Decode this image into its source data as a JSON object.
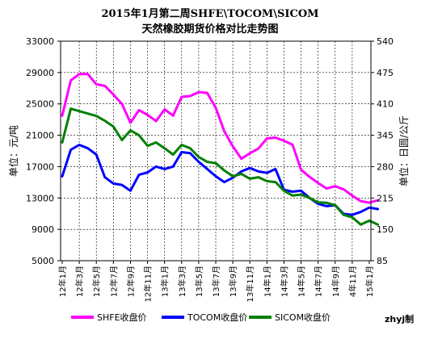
{
  "chart_data": {
    "type": "line",
    "title_line1": "2015年1月第二周SHFE\\TOCOM\\SICOM",
    "title_line2": "天然橡胶期货价格对比走势图",
    "ylabel_left": "单位：元/吨",
    "ylabel_right": "单位：日圆/公斤",
    "credit": "zhyj制",
    "yleft": {
      "min": 5000,
      "max": 33000,
      "ticks": [
        "5000",
        "9000",
        "13000",
        "17000",
        "21000",
        "25000",
        "29000",
        "33000"
      ]
    },
    "yright": {
      "min": 85,
      "max": 540,
      "ticks": [
        "85",
        "150",
        "215",
        "280",
        "345",
        "410",
        "475",
        "540"
      ]
    },
    "x_ticks": [
      "12年1月",
      "12年3月",
      "12年5月",
      "12年7月",
      "12年9月",
      "12年11月",
      "13年1月",
      "13年3月",
      "13年5月",
      "13年7月",
      "13年9月",
      "13年11月",
      "14年1月",
      "14年3月",
      "14年5月",
      "14年7月",
      "14年9月",
      "4年11月",
      "15年1月"
    ],
    "grid": true,
    "series": [
      {
        "name": "SHFE收盘价",
        "axis": "left",
        "color": "#ff00ff",
        "x": [
          0,
          0.5,
          1,
          1.5,
          2,
          2.5,
          3,
          3.5,
          4,
          4.5,
          5,
          5.5,
          6,
          6.5,
          7,
          7.5,
          8,
          8.5,
          9,
          9.5,
          10,
          10.5,
          11,
          11.5,
          12,
          12.5,
          13,
          13.5,
          14,
          14.5,
          15,
          15.5,
          16,
          16.5,
          17,
          17.5,
          18,
          18.5
        ],
        "values": [
          23500,
          28000,
          28800,
          28800,
          27500,
          27300,
          26200,
          25000,
          22600,
          24200,
          23600,
          22800,
          24300,
          23500,
          25900,
          26000,
          26500,
          26400,
          24500,
          21500,
          19600,
          18000,
          18700,
          19300,
          20600,
          20700,
          20300,
          19800,
          16600,
          15700,
          14900,
          14200,
          14500,
          14100,
          13300,
          12600,
          12400,
          12700
        ]
      },
      {
        "name": "TOCOM收盘价",
        "axis": "right",
        "color": "#0000ff",
        "x": [
          0,
          0.5,
          1,
          1.5,
          2,
          2.5,
          3,
          3.5,
          4,
          4.5,
          5,
          5.5,
          6,
          6.5,
          7,
          7.5,
          8,
          8.5,
          9,
          9.5,
          10,
          10.5,
          11,
          11.5,
          12,
          12.5,
          13,
          13.5,
          14,
          14.5,
          15,
          15.5,
          16,
          16.5,
          17,
          17.5,
          18,
          18.5
        ],
        "values": [
          260,
          315,
          325,
          318,
          305,
          258,
          245,
          242,
          230,
          263,
          268,
          280,
          275,
          280,
          310,
          308,
          290,
          275,
          260,
          248,
          257,
          270,
          277,
          270,
          267,
          275,
          232,
          228,
          230,
          215,
          203,
          198,
          200,
          182,
          180,
          186,
          195,
          192
        ]
      },
      {
        "name": "SICOM收盘价",
        "axis": "right",
        "color": "#008000",
        "x": [
          0,
          0.5,
          1,
          1.5,
          2,
          2.5,
          3,
          3.5,
          4,
          4.5,
          5,
          5.5,
          6,
          6.5,
          7,
          7.5,
          8,
          8.5,
          9,
          9.5,
          10,
          10.5,
          11,
          11.5,
          12,
          12.5,
          13,
          13.5,
          14,
          14.5,
          15,
          15.5,
          16,
          16.5,
          17,
          17.5,
          18,
          18.5
        ],
        "values": [
          330,
          400,
          395,
          390,
          385,
          375,
          363,
          335,
          355,
          345,
          323,
          330,
          318,
          305,
          325,
          318,
          300,
          290,
          287,
          272,
          260,
          265,
          255,
          258,
          250,
          248,
          230,
          220,
          222,
          215,
          206,
          205,
          200,
          180,
          175,
          160,
          168,
          160
        ]
      }
    ]
  }
}
